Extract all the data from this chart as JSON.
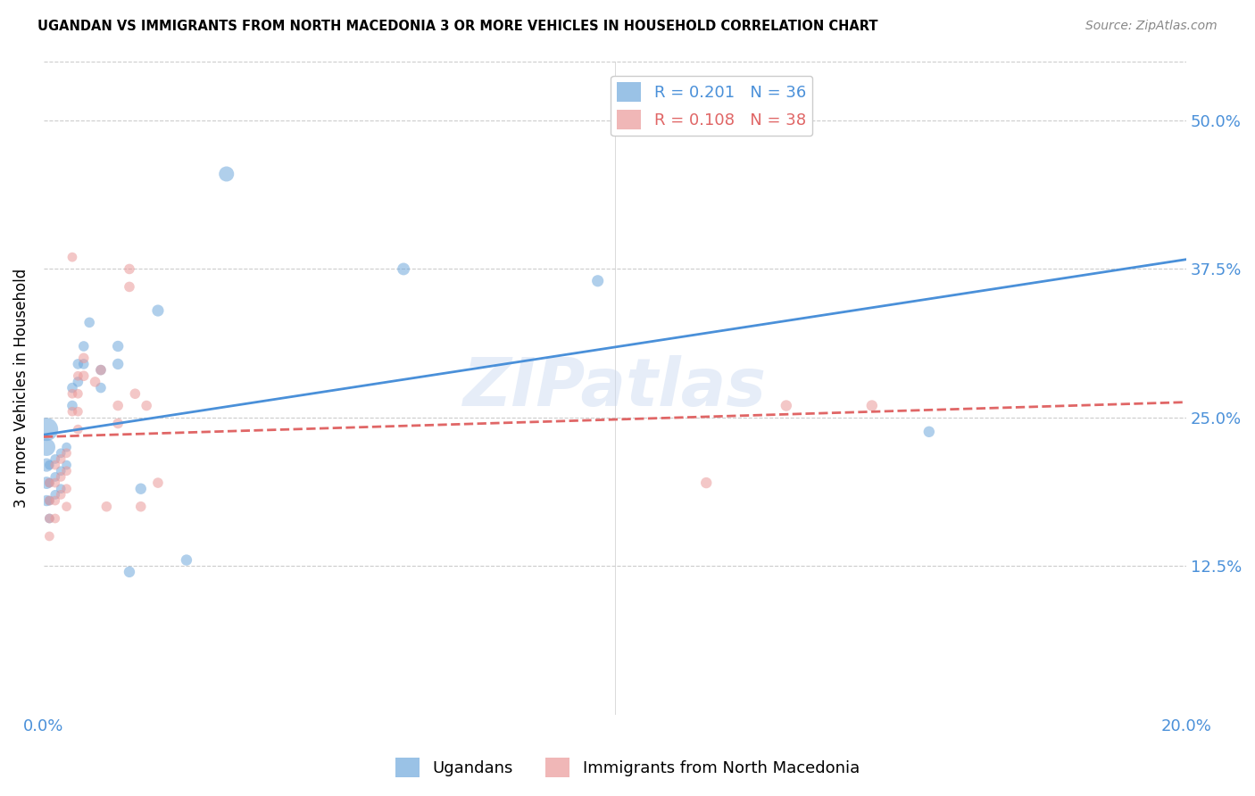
{
  "title": "UGANDAN VS IMMIGRANTS FROM NORTH MACEDONIA 3 OR MORE VEHICLES IN HOUSEHOLD CORRELATION CHART",
  "source": "Source: ZipAtlas.com",
  "ylabel": "3 or more Vehicles in Household",
  "xlim": [
    0.0,
    0.2
  ],
  "ylim": [
    0.0,
    0.55
  ],
  "watermark": "ZIPatlas",
  "ugandan_color": "#6fa8dc",
  "macedonia_color": "#ea9999",
  "ugandan_line_color": "#4a90d9",
  "macedonia_line_color": "#e06666",
  "axis_color": "#4a90d9",
  "ugandan_x": [
    0.001,
    0.001,
    0.001,
    0.001,
    0.002,
    0.002,
    0.002,
    0.003,
    0.003,
    0.003,
    0.004,
    0.004,
    0.005,
    0.005,
    0.006,
    0.006,
    0.007,
    0.007,
    0.008,
    0.01,
    0.01,
    0.013,
    0.013,
    0.015,
    0.017,
    0.02,
    0.025,
    0.032,
    0.063,
    0.097,
    0.155,
    0.0005,
    0.0005,
    0.0005,
    0.0005,
    0.0005
  ],
  "ugandan_y": [
    0.21,
    0.195,
    0.18,
    0.165,
    0.215,
    0.2,
    0.185,
    0.22,
    0.205,
    0.19,
    0.225,
    0.21,
    0.275,
    0.26,
    0.295,
    0.28,
    0.31,
    0.295,
    0.33,
    0.29,
    0.275,
    0.31,
    0.295,
    0.12,
    0.19,
    0.34,
    0.13,
    0.455,
    0.375,
    0.365,
    0.238,
    0.24,
    0.225,
    0.21,
    0.195,
    0.18
  ],
  "ugandan_s": [
    60,
    60,
    60,
    60,
    60,
    60,
    60,
    60,
    60,
    60,
    60,
    60,
    70,
    70,
    70,
    70,
    70,
    70,
    70,
    70,
    70,
    80,
    80,
    80,
    80,
    90,
    80,
    150,
    100,
    90,
    80,
    350,
    200,
    120,
    100,
    80
  ],
  "macedonia_x": [
    0.001,
    0.001,
    0.001,
    0.001,
    0.002,
    0.002,
    0.002,
    0.002,
    0.003,
    0.003,
    0.003,
    0.004,
    0.004,
    0.004,
    0.004,
    0.005,
    0.005,
    0.005,
    0.006,
    0.006,
    0.006,
    0.006,
    0.007,
    0.007,
    0.009,
    0.011,
    0.013,
    0.013,
    0.015,
    0.015,
    0.016,
    0.017,
    0.018,
    0.02,
    0.01,
    0.116,
    0.13,
    0.145
  ],
  "macedonia_y": [
    0.195,
    0.18,
    0.165,
    0.15,
    0.21,
    0.195,
    0.18,
    0.165,
    0.215,
    0.2,
    0.185,
    0.22,
    0.205,
    0.19,
    0.175,
    0.385,
    0.27,
    0.255,
    0.285,
    0.27,
    0.255,
    0.24,
    0.3,
    0.285,
    0.28,
    0.175,
    0.26,
    0.245,
    0.375,
    0.36,
    0.27,
    0.175,
    0.26,
    0.195,
    0.29,
    0.195,
    0.26,
    0.26
  ],
  "macedonia_s": [
    60,
    60,
    60,
    60,
    60,
    60,
    60,
    60,
    60,
    60,
    60,
    60,
    60,
    60,
    60,
    60,
    60,
    60,
    60,
    60,
    60,
    60,
    70,
    70,
    70,
    70,
    70,
    70,
    70,
    70,
    70,
    70,
    70,
    70,
    70,
    80,
    80,
    80
  ],
  "legend_r1": "R = 0.201",
  "legend_n1": "N = 36",
  "legend_r2": "R = 0.108",
  "legend_n2": "N = 38",
  "label_ugandan": "Ugandans",
  "label_macedonia": "Immigrants from North Macedonia"
}
